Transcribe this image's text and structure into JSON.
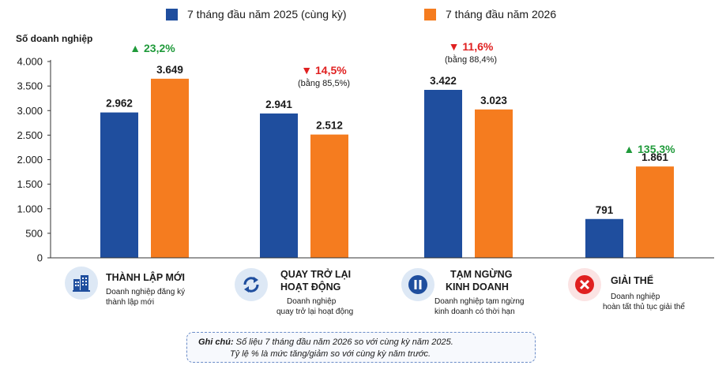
{
  "legend": {
    "series_2025": "7 tháng đầu năm 2025 (cùng kỳ)",
    "series_2026": "7 tháng đầu năm 2026"
  },
  "colors": {
    "s2025": "#1f4e9e",
    "s2026": "#f57c1f",
    "up": "#1f9a3a",
    "down": "#e02020",
    "axis": "#333333"
  },
  "chart_data": {
    "type": "bar",
    "title": "",
    "xlabel": "",
    "ylabel": "Số doanh nghiệp",
    "ylim": [
      0,
      4000
    ],
    "yticks": [
      0,
      500,
      1000,
      1500,
      2000,
      2500,
      3000,
      3500,
      4000
    ],
    "ytick_labels": [
      "0",
      "500",
      "1.000",
      "1.500",
      "2.000",
      "2.500",
      "3.000",
      "3.500",
      "4.000"
    ],
    "grid": false,
    "legend_position": "top",
    "categories": [
      "THÀNH LẬP MỚI",
      "QUAY TRỞ LẠI HOẠT ĐỘNG",
      "TẠM NGỪNG KINH DOANH",
      "GIẢI THỂ"
    ],
    "series": [
      {
        "name": "7 tháng đầu năm 2025 (cùng kỳ)",
        "values": [
          2962,
          2941,
          3422,
          791
        ],
        "labels": [
          "2.962",
          "2.941",
          "3.422",
          "791"
        ]
      },
      {
        "name": "7 tháng đầu năm 2026",
        "values": [
          3649,
          2512,
          3023,
          1861
        ],
        "labels": [
          "3.649",
          "2.512",
          "3.023",
          "1.861"
        ]
      }
    ],
    "annotations": [
      {
        "direction": "up",
        "text": "▲ 23,2%",
        "sub": ""
      },
      {
        "direction": "down",
        "text": "▼ 14,5%",
        "sub": "(bằng 85,5%)"
      },
      {
        "direction": "down",
        "text": "▼ 11,6%",
        "sub": "(bằng 88,4%)"
      },
      {
        "direction": "up",
        "text": "▲ 135,3%",
        "sub": ""
      }
    ]
  },
  "categories_panel": [
    {
      "title_line1": "THÀNH LẬP MỚI",
      "title_line2": "",
      "desc_line1": "Doanh nghiệp đăng ký",
      "desc_line2": "thành lập mới",
      "icon": "building-icon"
    },
    {
      "title_line1": "QUAY TRỞ LẠI",
      "title_line2": "HOẠT ĐỘNG",
      "desc_line1": "Doanh nghiệp",
      "desc_line2": "quay trở lại hoạt động",
      "icon": "refresh-icon"
    },
    {
      "title_line1": "TẠM NGỪNG",
      "title_line2": "KINH DOANH",
      "desc_line1": "Doanh nghiệp tạm ngừng",
      "desc_line2": "kinh doanh có thời hạn",
      "icon": "pause-icon"
    },
    {
      "title_line1": "GIẢI THỂ",
      "title_line2": "",
      "desc_line1": "Doanh nghiệp",
      "desc_line2": "hoàn tất thủ tục giải thể",
      "icon": "close-circle-icon"
    }
  ],
  "note": {
    "label": "Ghi chú:",
    "line1": "Số liệu 7 tháng đầu năm 2026 so với cùng kỳ năm 2025.",
    "line2": "Tỷ lệ % là mức tăng/giảm so với cùng kỳ năm trước."
  }
}
